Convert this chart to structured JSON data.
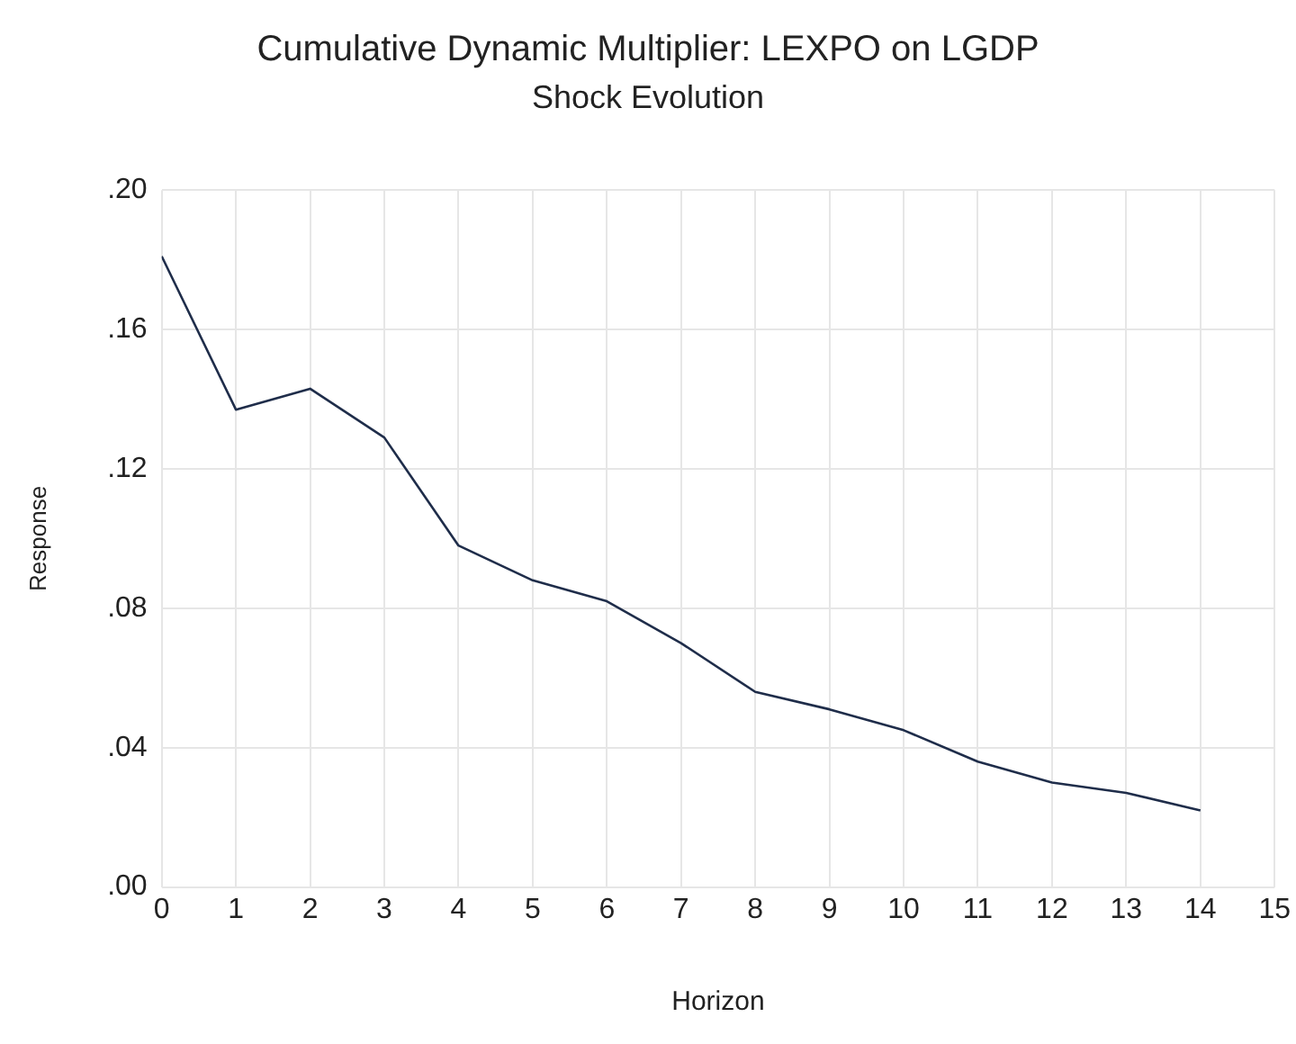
{
  "chart_data": {
    "type": "line",
    "title": "Cumulative Dynamic Multiplier: LEXPO on LGDP",
    "subtitle": "Shock Evolution",
    "xlabel": "Horizon",
    "ylabel": "Response",
    "x": [
      0,
      1,
      2,
      3,
      4,
      5,
      6,
      7,
      8,
      9,
      10,
      11,
      12,
      13,
      14
    ],
    "series": [
      {
        "color": "#1f2d4a",
        "values": [
          0.181,
          0.137,
          0.143,
          0.129,
          0.098,
          0.088,
          0.082,
          0.07,
          0.056,
          0.051,
          0.045,
          0.036,
          0.03,
          0.027,
          0.022
        ]
      }
    ],
    "xlim": [
      0,
      15
    ],
    "xticks": [
      0,
      1,
      2,
      3,
      4,
      5,
      6,
      7,
      8,
      9,
      10,
      11,
      12,
      13,
      14,
      15
    ],
    "ylim": [
      0,
      0.2
    ],
    "yticks": [
      {
        "value": 0,
        "label": ".00"
      },
      {
        "value": 0.04,
        "label": ".04"
      },
      {
        "value": 0.08,
        "label": ".08"
      },
      {
        "value": 0.12,
        "label": ".12"
      },
      {
        "value": 0.16,
        "label": ".16"
      },
      {
        "value": 0.2,
        "label": ".20"
      }
    ],
    "grid": true,
    "legend": false,
    "marker": "none",
    "line_style": "solid"
  }
}
